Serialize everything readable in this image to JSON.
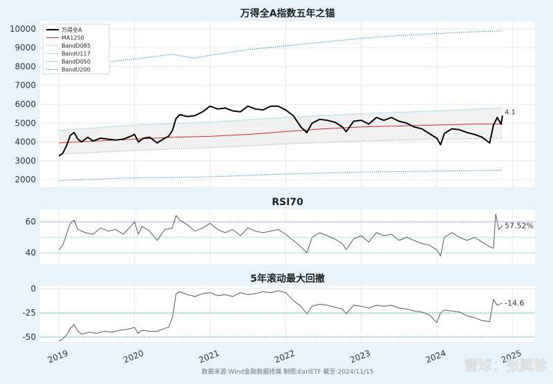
{
  "chart_data": [
    {
      "type": "line",
      "title": "万得全A指数五年之锚",
      "ylim": [
        1600,
        10400
      ],
      "yticks": [
        2000,
        3000,
        4000,
        5000,
        6000,
        7000,
        8000,
        9000,
        10000
      ],
      "legend_position": "top-left",
      "grid": true,
      "series": [
        {
          "name": "万得全A",
          "color": "#000000",
          "style": "solid-thick",
          "x": [
            2019.0,
            2019.05,
            2019.1,
            2019.15,
            2019.2,
            2019.25,
            2019.3,
            2019.38,
            2019.45,
            2019.55,
            2019.65,
            2019.75,
            2019.85,
            2019.95,
            2020.0,
            2020.05,
            2020.12,
            2020.2,
            2020.3,
            2020.4,
            2020.45,
            2020.5,
            2020.55,
            2020.6,
            2020.7,
            2020.8,
            2020.9,
            2021.0,
            2021.1,
            2021.2,
            2021.3,
            2021.4,
            2021.5,
            2021.6,
            2021.7,
            2021.8,
            2021.9,
            2022.0,
            2022.1,
            2022.2,
            2022.28,
            2022.35,
            2022.45,
            2022.55,
            2022.65,
            2022.75,
            2022.8,
            2022.9,
            2023.0,
            2023.1,
            2023.2,
            2023.3,
            2023.4,
            2023.5,
            2023.6,
            2023.7,
            2023.8,
            2023.9,
            2024.0,
            2024.05,
            2024.1,
            2024.2,
            2024.3,
            2024.4,
            2024.5,
            2024.6,
            2024.65,
            2024.7,
            2024.75,
            2024.8,
            2024.85,
            2024.87
          ],
          "y": [
            3250,
            3400,
            3800,
            4350,
            4500,
            4150,
            4000,
            4250,
            4050,
            4200,
            4150,
            4100,
            4150,
            4300,
            4400,
            4000,
            4200,
            4250,
            3950,
            4200,
            4300,
            4600,
            5250,
            5450,
            5350,
            5400,
            5600,
            5900,
            5750,
            5800,
            5650,
            5600,
            5900,
            5750,
            5700,
            5900,
            5900,
            5700,
            5400,
            4800,
            4500,
            5000,
            5200,
            5150,
            5050,
            4800,
            4550,
            5100,
            5150,
            4950,
            5300,
            5150,
            5300,
            5100,
            5000,
            4800,
            4700,
            4450,
            4200,
            3850,
            4450,
            4700,
            4650,
            4500,
            4400,
            4250,
            4100,
            3950,
            4900,
            5300,
            4950,
            5400
          ]
        },
        {
          "name": "MA1250",
          "color": "#d62728",
          "style": "solid",
          "x": [
            2019.0,
            2020.0,
            2020.5,
            2021.0,
            2021.5,
            2022.0,
            2022.5,
            2023.0,
            2023.5,
            2024.0,
            2024.5,
            2024.87
          ],
          "y": [
            3950,
            4150,
            4250,
            4300,
            4400,
            4550,
            4700,
            4800,
            4850,
            4900,
            4950,
            4950
          ]
        },
        {
          "name": "BandD085",
          "color": "#999999",
          "style": "dotted",
          "x": [
            2019.0,
            2020.0,
            2021.0,
            2022.0,
            2023.0,
            2024.0,
            2024.87
          ],
          "y": [
            3350,
            3550,
            3700,
            3900,
            4050,
            4150,
            4200
          ]
        },
        {
          "name": "BandU117",
          "color": "#58b2d6",
          "style": "dotted",
          "x": [
            2019.0,
            2020.0,
            2021.0,
            2022.0,
            2023.0,
            2024.0,
            2024.87
          ],
          "y": [
            4600,
            4900,
            5050,
            5300,
            5500,
            5650,
            5800
          ]
        },
        {
          "name": "BandD050",
          "color": "#1f77b4",
          "style": "dotted",
          "x": [
            2019.0,
            2020.0,
            2021.0,
            2022.0,
            2023.0,
            2024.0,
            2024.87
          ],
          "y": [
            1950,
            2100,
            2150,
            2300,
            2400,
            2450,
            2500
          ]
        },
        {
          "name": "BandU200",
          "color": "#1f77b4",
          "style": "dotted",
          "x": [
            2019.0,
            2019.5,
            2020.0,
            2020.5,
            2020.8,
            2021.0,
            2021.5,
            2022.0,
            2022.5,
            2023.0,
            2023.5,
            2024.0,
            2024.5,
            2024.87
          ],
          "y": [
            8000,
            8200,
            8400,
            8650,
            8450,
            8600,
            8900,
            9100,
            9300,
            9500,
            9650,
            9750,
            9850,
            9900
          ]
        }
      ],
      "end_label": "4.1"
    },
    {
      "type": "line",
      "title": "RSI70",
      "ylim": [
        33,
        68
      ],
      "yticks": [
        40,
        60
      ],
      "grid": true,
      "reference_lines": [
        {
          "y": 60,
          "color": "#6a8fd6"
        },
        {
          "y": 50,
          "color": "#7fdcc8"
        },
        {
          "y": 40,
          "color": "#7fdcc8"
        }
      ],
      "series": [
        {
          "name": "",
          "color": "#555555",
          "style": "solid",
          "x": [
            2019.0,
            2019.05,
            2019.1,
            2019.15,
            2019.2,
            2019.25,
            2019.35,
            2019.45,
            2019.55,
            2019.65,
            2019.75,
            2019.85,
            2019.95,
            2020.0,
            2020.05,
            2020.1,
            2020.2,
            2020.3,
            2020.4,
            2020.5,
            2020.55,
            2020.6,
            2020.7,
            2020.8,
            2020.9,
            2021.0,
            2021.1,
            2021.2,
            2021.3,
            2021.4,
            2021.5,
            2021.6,
            2021.7,
            2021.8,
            2021.9,
            2022.0,
            2022.1,
            2022.2,
            2022.28,
            2022.35,
            2022.45,
            2022.55,
            2022.65,
            2022.75,
            2022.8,
            2022.9,
            2023.0,
            2023.1,
            2023.2,
            2023.3,
            2023.4,
            2023.5,
            2023.6,
            2023.7,
            2023.8,
            2023.9,
            2024.0,
            2024.05,
            2024.1,
            2024.2,
            2024.3,
            2024.4,
            2024.5,
            2024.6,
            2024.7,
            2024.75,
            2024.78,
            2024.82,
            2024.87
          ],
          "y": [
            42,
            45,
            52,
            59,
            61,
            55,
            53,
            52,
            56,
            54,
            55,
            52,
            57,
            60,
            52,
            57,
            54,
            48,
            55,
            56,
            64,
            61,
            58,
            54,
            56,
            59,
            55,
            53,
            55,
            51,
            56,
            54,
            53,
            54,
            55,
            52,
            48,
            44,
            40,
            50,
            53,
            51,
            49,
            46,
            42,
            49,
            51,
            47,
            53,
            51,
            52,
            48,
            50,
            48,
            46,
            45,
            42,
            38,
            50,
            53,
            50,
            48,
            50,
            47,
            44,
            43,
            65,
            55,
            57.52
          ]
        }
      ],
      "end_label": "57.52%"
    },
    {
      "type": "line",
      "title": "5年滚动最大回撤",
      "ylim": [
        -55,
        3
      ],
      "yticks": [
        0,
        -25,
        -50
      ],
      "grid": true,
      "reference_lines": [
        {
          "y": -25,
          "color": "#2ec78e"
        },
        {
          "y": -50,
          "color": "#2ec78e"
        }
      ],
      "series": [
        {
          "name": "",
          "color": "#555555",
          "style": "solid",
          "x": [
            2019.0,
            2019.05,
            2019.1,
            2019.15,
            2019.2,
            2019.25,
            2019.3,
            2019.4,
            2019.5,
            2019.6,
            2019.7,
            2019.8,
            2019.9,
            2020.0,
            2020.05,
            2020.1,
            2020.2,
            2020.3,
            2020.4,
            2020.45,
            2020.5,
            2020.55,
            2020.6,
            2020.7,
            2020.8,
            2020.9,
            2021.0,
            2021.1,
            2021.2,
            2021.3,
            2021.4,
            2021.5,
            2021.6,
            2021.7,
            2021.8,
            2021.9,
            2022.0,
            2022.1,
            2022.2,
            2022.28,
            2022.35,
            2022.45,
            2022.55,
            2022.65,
            2022.75,
            2022.8,
            2022.9,
            2023.0,
            2023.1,
            2023.2,
            2023.3,
            2023.4,
            2023.5,
            2023.6,
            2023.7,
            2023.8,
            2023.9,
            2024.0,
            2024.05,
            2024.1,
            2024.2,
            2024.3,
            2024.4,
            2024.5,
            2024.6,
            2024.7,
            2024.75,
            2024.8,
            2024.87
          ],
          "y": [
            -54,
            -52,
            -48,
            -41,
            -37,
            -44,
            -47,
            -45,
            -46,
            -44,
            -45,
            -43,
            -42,
            -40,
            -46,
            -43,
            -44,
            -44,
            -41,
            -40,
            -30,
            -5,
            -3,
            -6,
            -8,
            -5,
            -4,
            -7,
            -6,
            -8,
            -4,
            -6,
            -5,
            -3,
            -4,
            -2,
            -4,
            -12,
            -18,
            -26,
            -18,
            -16,
            -17,
            -19,
            -21,
            -26,
            -17,
            -18,
            -20,
            -17,
            -18,
            -17,
            -20,
            -21,
            -23,
            -24,
            -27,
            -35,
            -25,
            -22,
            -23,
            -24,
            -28,
            -30,
            -33,
            -34,
            -11,
            -17,
            -14.6
          ]
        }
      ],
      "end_label": "-14.6"
    }
  ],
  "x_axis": {
    "ticks": [
      "2019",
      "2020",
      "2021",
      "2022",
      "2023",
      "2024",
      "2025"
    ],
    "tick_values": [
      2019,
      2020,
      2021,
      2022,
      2023,
      2024,
      2025
    ],
    "xlim": [
      2018.75,
      2025.3
    ]
  },
  "legend": {
    "items": [
      {
        "label": "万得全A",
        "color": "#000000",
        "style": "solid-thick"
      },
      {
        "label": "MA1250",
        "color": "#d62728",
        "style": "solid"
      },
      {
        "label": "BandD085",
        "color": "#999999",
        "style": "dotted"
      },
      {
        "label": "BandU117",
        "color": "#58b2d6",
        "style": "dotted"
      },
      {
        "label": "BandD050",
        "color": "#1f77b4",
        "style": "dotted"
      },
      {
        "label": "BandU200",
        "color": "#1f77b4",
        "style": "dotted"
      }
    ]
  },
  "source_note": "数据来源:Wind金融数据终端  制图:EarlETF  截至:2024/11/15",
  "watermark": "雪球：张翼轸",
  "colors": {
    "background": "#e8f3fb",
    "plot_bg": "#ffffff",
    "band_fill": "#eeeeee"
  }
}
